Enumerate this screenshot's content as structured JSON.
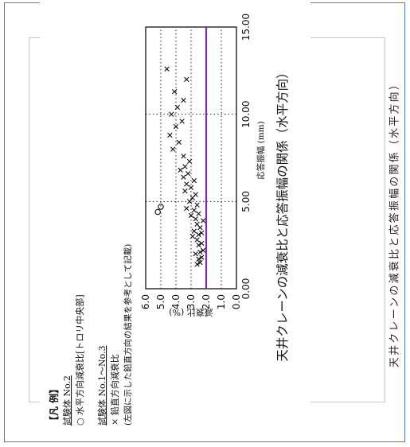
{
  "side_caption": "天井クレーンの減衰比と応答振幅の関係（水平方向）",
  "legend": {
    "heading": "【凡 例】",
    "specimen2": "試験体 No.2",
    "circle_item": "○ 水平方向減衰比[トロリ中央部]",
    "specimen1_3": "試験体 No.1〜No.3",
    "cross_item": "× 鉛直方向減衰比",
    "cross_note": "(左図に示した鉛直方向の結果を参考として記載)"
  },
  "colors": {
    "reference_line": "#7a2ea0",
    "frame": "#4a7fc1"
  },
  "chart_data": {
    "type": "scatter",
    "title": "天井クレーンの減衰比と応答振幅の関係（水平方向）",
    "xlabel": "応答振幅 (mm)",
    "ylabel": "減衰比 (%)",
    "xlim": [
      0,
      15
    ],
    "ylim": [
      0,
      6
    ],
    "x_ticks": [
      "0.00",
      "5.00",
      "10.00",
      "15.00"
    ],
    "y_ticks": [
      "0.0",
      "1.0",
      "2.0",
      "3.0",
      "4.0",
      "5.0",
      "6.0"
    ],
    "grid": "dotted",
    "reference_line_y": 2.0,
    "series": [
      {
        "name": "○ 水平方向減衰比[トロリ中央部]",
        "marker": "circle",
        "points": [
          [
            4.4,
            5.2
          ],
          [
            4.7,
            5.0
          ]
        ]
      },
      {
        "name": "× 鉛直方向減衰比",
        "marker": "cross",
        "points": [
          [
            1.4,
            2.6
          ],
          [
            1.5,
            2.4
          ],
          [
            1.7,
            2.5
          ],
          [
            1.8,
            2.3
          ],
          [
            2.0,
            2.7
          ],
          [
            2.1,
            2.4
          ],
          [
            2.2,
            2.2
          ],
          [
            2.5,
            2.5
          ],
          [
            2.6,
            2.3
          ],
          [
            2.8,
            2.6
          ],
          [
            3.0,
            2.9
          ],
          [
            3.1,
            2.5
          ],
          [
            3.2,
            2.3
          ],
          [
            3.3,
            2.8
          ],
          [
            3.5,
            2.4
          ],
          [
            3.7,
            2.6
          ],
          [
            3.9,
            2.2
          ],
          [
            4.0,
            2.7
          ],
          [
            4.2,
            3.0
          ],
          [
            4.3,
            2.5
          ],
          [
            4.5,
            2.8
          ],
          [
            4.6,
            3.3
          ],
          [
            4.8,
            2.6
          ],
          [
            5.0,
            3.1
          ],
          [
            5.2,
            2.9
          ],
          [
            5.4,
            2.7
          ],
          [
            5.6,
            3.4
          ],
          [
            5.8,
            3.0
          ],
          [
            6.0,
            3.3
          ],
          [
            6.2,
            2.8
          ],
          [
            6.4,
            3.5
          ],
          [
            6.6,
            3.2
          ],
          [
            6.8,
            3.7
          ],
          [
            7.0,
            3.4
          ],
          [
            7.3,
            3.1
          ],
          [
            7.6,
            3.5
          ],
          [
            8.0,
            4.2
          ],
          [
            8.4,
            3.8
          ],
          [
            8.8,
            4.4
          ],
          [
            9.3,
            4.0
          ],
          [
            9.6,
            3.6
          ],
          [
            10.0,
            4.3
          ],
          [
            10.4,
            3.9
          ],
          [
            10.8,
            3.5
          ],
          [
            11.3,
            4.1
          ],
          [
            12.0,
            3.3
          ],
          [
            12.6,
            4.6
          ]
        ]
      }
    ]
  }
}
